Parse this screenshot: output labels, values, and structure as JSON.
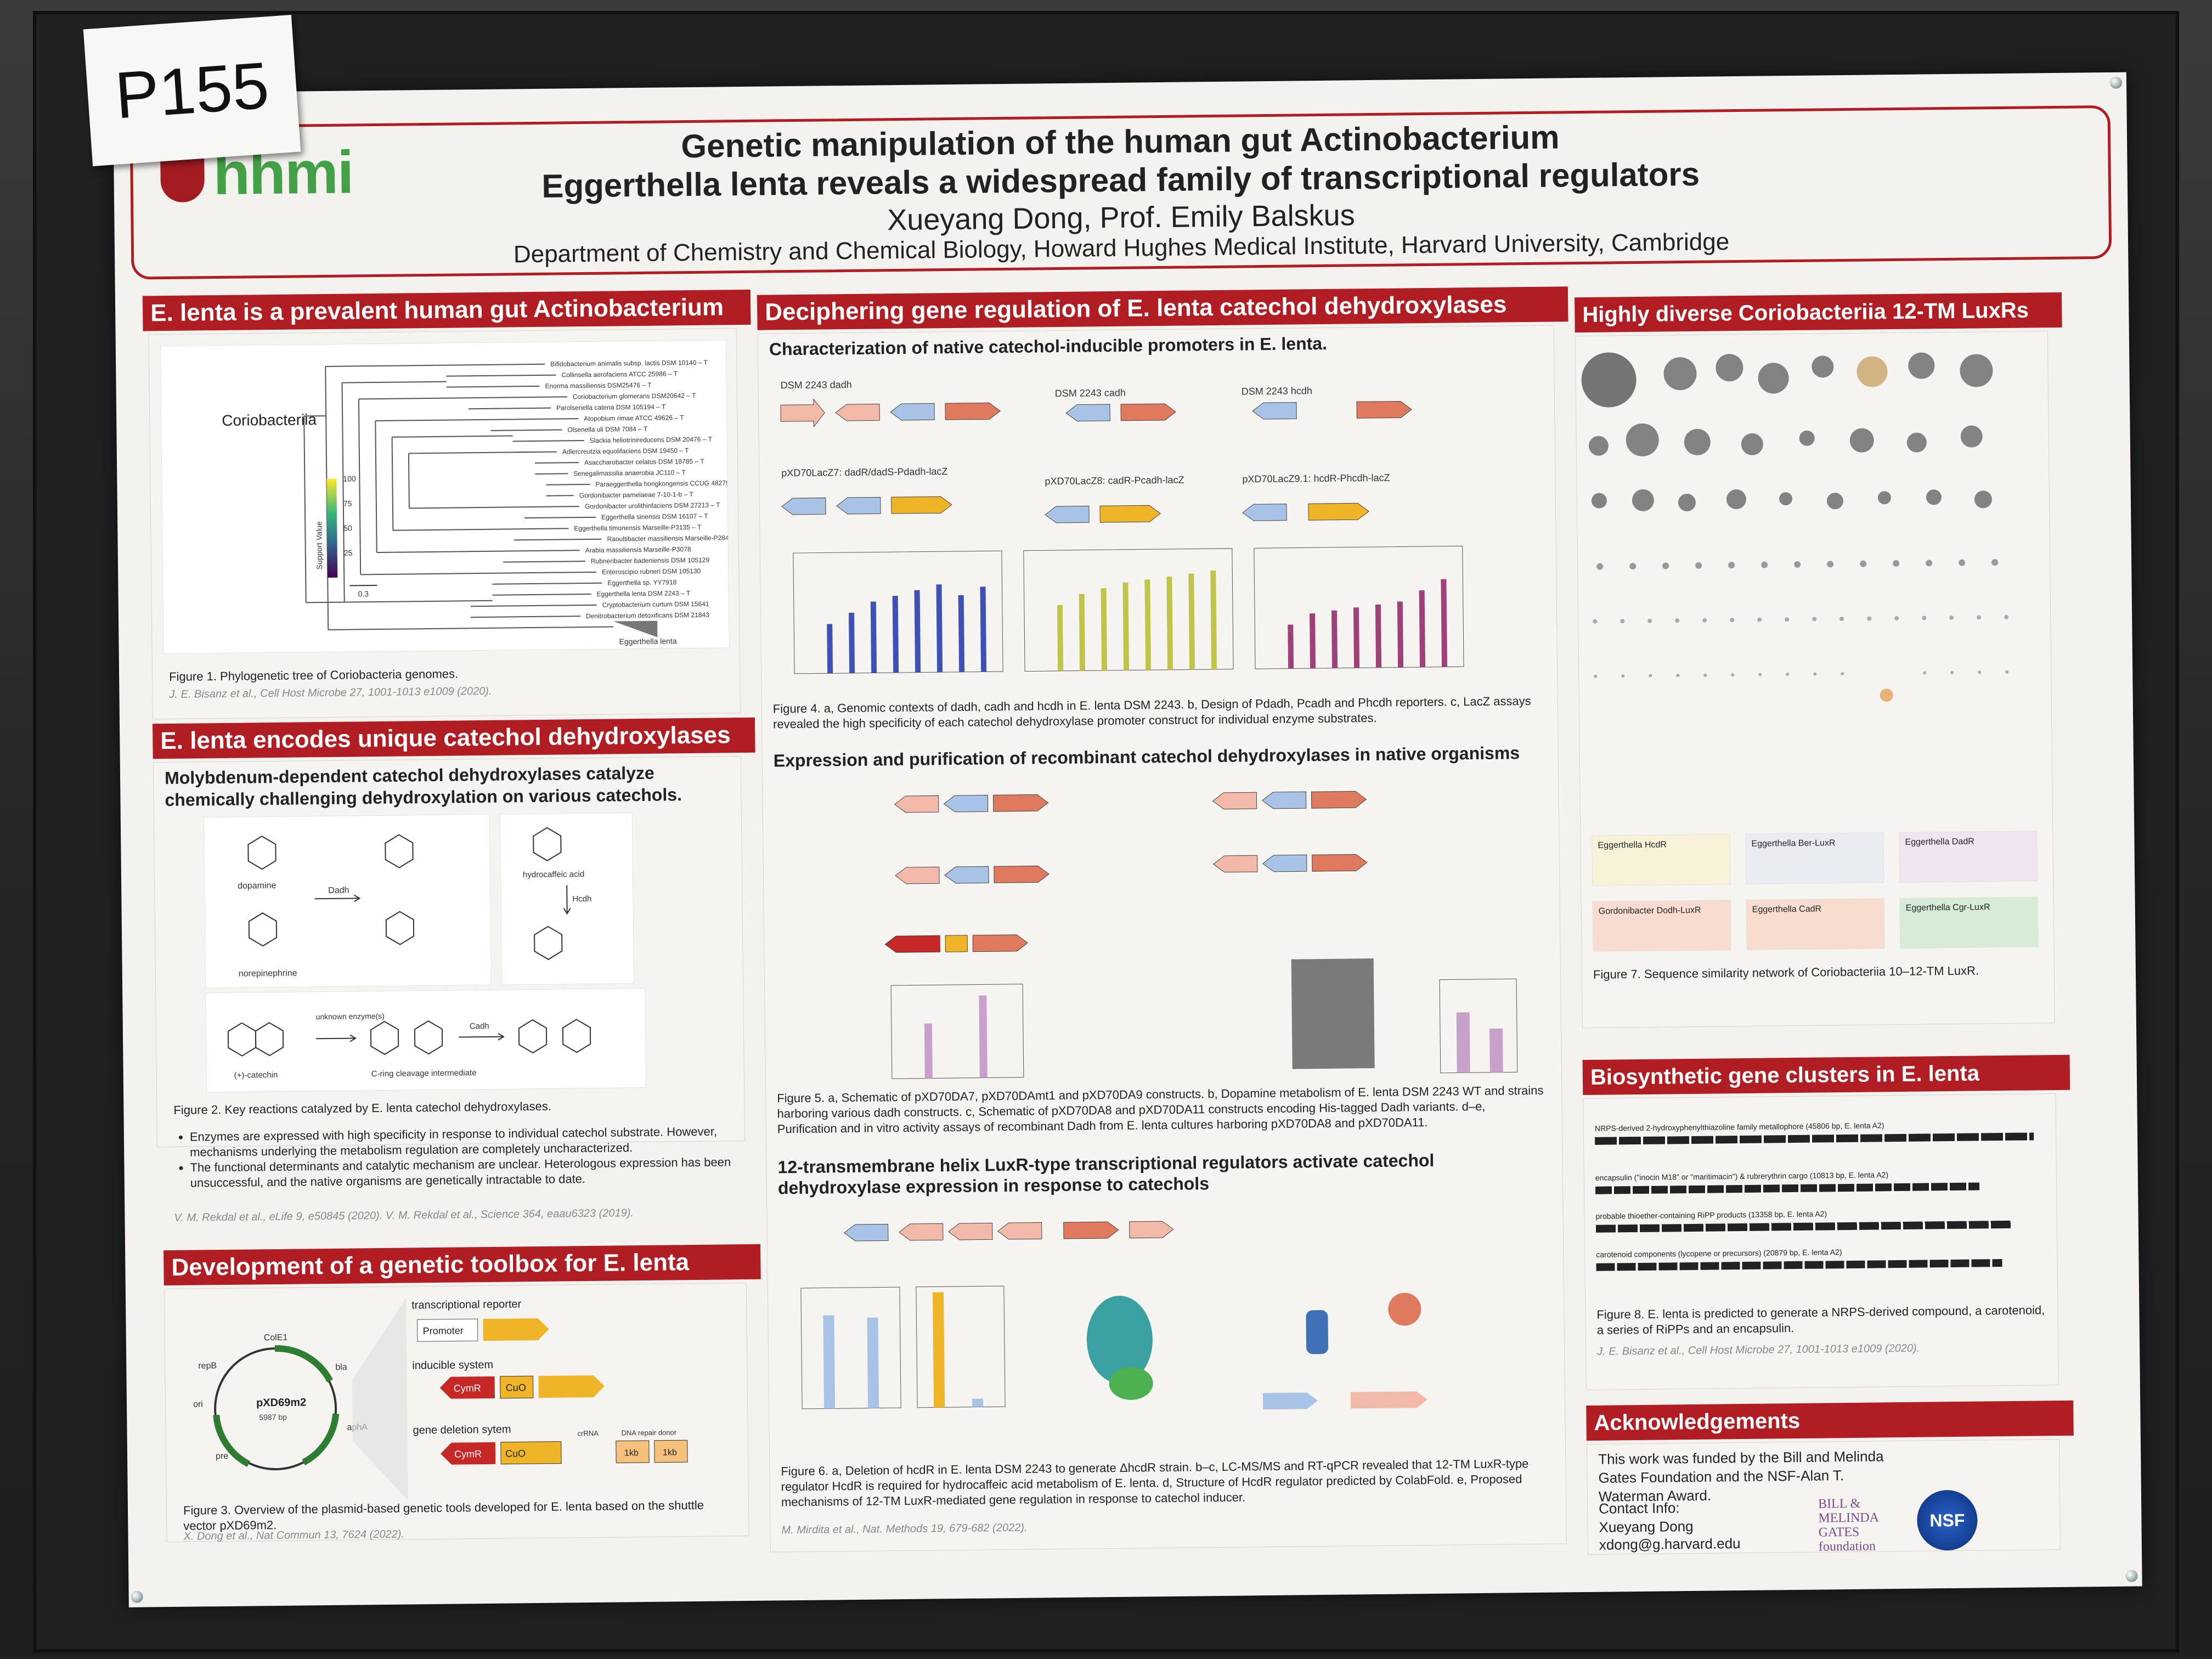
{
  "tag": "P155",
  "logo": "hhmi",
  "header": {
    "title_line1": "Genetic manipulation of the human gut Actinobacterium",
    "title_line2": "Eggerthella lenta reveals a widespread family of transcriptional regulators",
    "authors": "Xueyang Dong, Prof. Emily Balskus",
    "affiliation": "Department of Chemistry and Chemical Biology, Howard Hughes Medical Institute, Harvard University, Cambridge"
  },
  "section1": {
    "title": "E. lenta is a prevalent human gut Actinobacterium",
    "clade_label": "Coriobacteriia",
    "scale_label": "Support Value",
    "scale_ticks": [
      "100",
      "75",
      "50",
      "25"
    ],
    "scale_bar": "0.3",
    "leaf_label": "Eggerthella lenta",
    "caption": "Figure 1. Phylogenetic tree of Coriobacteria genomes.",
    "ref": "J. E. Bisanz et al., Cell Host Microbe 27, 1001-1013 e1009 (2020)."
  },
  "section2": {
    "title": "E. lenta encodes unique catechol dehydroxylases",
    "subtitle1": "Molybdenum-dependent catechol dehydroxylases catalyze",
    "subtitle2": "chemically challenging dehydroxylation on various catechols.",
    "labels": {
      "dopamine": "dopamine",
      "norepinephrine": "norepinephrine",
      "dadh": "Dadh",
      "hydrocaffeic": "hydrocaffeic acid",
      "hcdh": "Hcdh",
      "catechin": "(+)-catechin",
      "unknown": "unknown enzyme(s)",
      "intermediate": "C-ring cleavage intermediate",
      "cadh": "Cadh"
    },
    "caption": "Figure 2. Key reactions catalyzed by E. lenta catechol dehydroxylases.",
    "bullet1": "Enzymes are expressed with high specificity in response to individual catechol substrate. However, mechanisms underlying the metabolism regulation are completely uncharacterized.",
    "bullet2": "The functional determinants and catalytic mechanism are unclear. Heterologous expression has been unsuccessful, and the native organisms are genetically intractable to date.",
    "ref": "V. M. Rekdal et al., eLife 9, e50845 (2020).     V. M. Rekdal et al., Science 364, eaau6323 (2019)."
  },
  "section3": {
    "title": "Development of a genetic toolbox for E. lenta",
    "plasmid": "pXD69m2",
    "plasmid_size": "5987 bp",
    "plasmid_parts": [
      "ColE1",
      "bla",
      "repB",
      "ori",
      "pre",
      "aphA"
    ],
    "reporter": "transcriptional reporter",
    "promoter": "Promoter",
    "inducible": "inducible system",
    "cymr": "CymR",
    "cuo": "CuO",
    "deletion": "gene deletion sytem",
    "crrna": "crRNA",
    "donor": "DNA repair donor",
    "kb": "1kb",
    "caption": "Figure 3. Overview of the plasmid-based genetic tools developed for E. lenta based on the shuttle vector pXD69m2.",
    "ref": "X. Dong et al., Nat Commun 13, 7624 (2022)."
  },
  "section4": {
    "title": "Deciphering gene regulation of E. lenta catechol dehydroxylases",
    "sub1": "Characterization of native catechol-inducible promoters in E. lenta.",
    "loci": [
      "DSM 2243 dadh",
      "DSM 2243 cadh",
      "DSM 2243 hcdh"
    ],
    "constructs": [
      "pXD70LacZ7: dadR/dadS-Pdadh-lacZ",
      "pXD70LacZ8: cadR-Pcadh-lacZ",
      "pXD70LacZ9.1: hcdR-Phcdh-lacZ"
    ],
    "fig4_caption": "Figure 4. a, Genomic contexts of dadh, cadh and hcdh in E. lenta DSM 2243. b, Design of Pdadh, Pcadh and Phcdh reporters. c, LacZ assays revealed the high specificity of each catechol dehydroxylase promoter construct for individual enzyme substrates.",
    "sub2": "Expression and purification of recombinant catechol dehydroxylases in native organisms",
    "fig5_caption": "Figure 5. a, Schematic of pXD70DA7, pXD70DAmt1 and pXD70DA9 constructs. b, Dopamine metabolism of E. lenta DSM 2243 WT and strains harboring various dadh constructs. c, Schematic of pXD70DA8 and pXD70DA11 constructs encoding His-tagged Dadh variants. d–e, Purification and in vitro activity assays of recombinant Dadh from E. lenta cultures harboring pXD70DA8 and pXD70DA11.",
    "sub3": "12-transmembrane helix LuxR-type transcriptional regulators activate catechol dehydroxylase expression in response to catechols",
    "fig6_caption": "Figure 6. a, Deletion of hcdR in E. lenta DSM 2243 to generate ΔhcdR strain. b–c, LC-MS/MS and RT-qPCR revealed that 12-TM LuxR-type regulator HcdR is required for hydrocaffeic acid metabolism of E. lenta. d, Structure of HcdR regulator predicted by ColabFold. e, Proposed mechanisms of 12-TM LuxR-mediated gene regulation in response to catechol inducer.",
    "ref": "M. Mirdita et al., Nat. Methods 19, 679-682 (2022)."
  },
  "section5": {
    "title": "Highly diverse Coriobacteriia 12-TM LuxRs",
    "box_labels": [
      "Eggerthella HcdR",
      "Eggerthella Ber-LuxR",
      "Eggerthella DadR",
      "Gordonibacter Dodh-LuxR",
      "Eggerthella CadR",
      "Eggerthella Cgr-LuxR"
    ],
    "caption": "Figure 7. Sequence similarity network of Coriobacteriia 10–12-TM LuxR."
  },
  "section6": {
    "title": "Biosynthetic gene clusters in E. lenta",
    "tracks": [
      "NRPS-derived 2-hydroxyphenylthiazoline family metallophore (45806 bp, E. lenta A2)",
      "encapsulin (\"inocin M18\" or \"maritimacin\") & rubrerythrin cargo (10813 bp, E. lenta A2)",
      "probable thioether-containing RiPP products (13358 bp, E. lenta A2)",
      "carotenoid components (lycopene or precursors) (20879 bp, E. lenta A2)"
    ],
    "caption": "Figure 8. E. lenta is predicted to generate a NRPS-derived compound, a carotenoid, a series of RiPPs and an encapsulin.",
    "ref": "J. E. Bisanz et al., Cell Host Microbe 27, 1001-1013 e1009 (2020)."
  },
  "section7": {
    "title": "Acknowledgements",
    "text": "This work was funded by the Bill and Melinda Gates Foundation and the NSF-Alan T. Waterman Award.",
    "contact_label": "Contact Info:",
    "contact_name": "Xueyang Dong",
    "contact_email": "xdong@g.harvard.edu",
    "gates_logo": "BILL & MELINDA GATES foundation",
    "nsf_logo": "NSF"
  }
}
